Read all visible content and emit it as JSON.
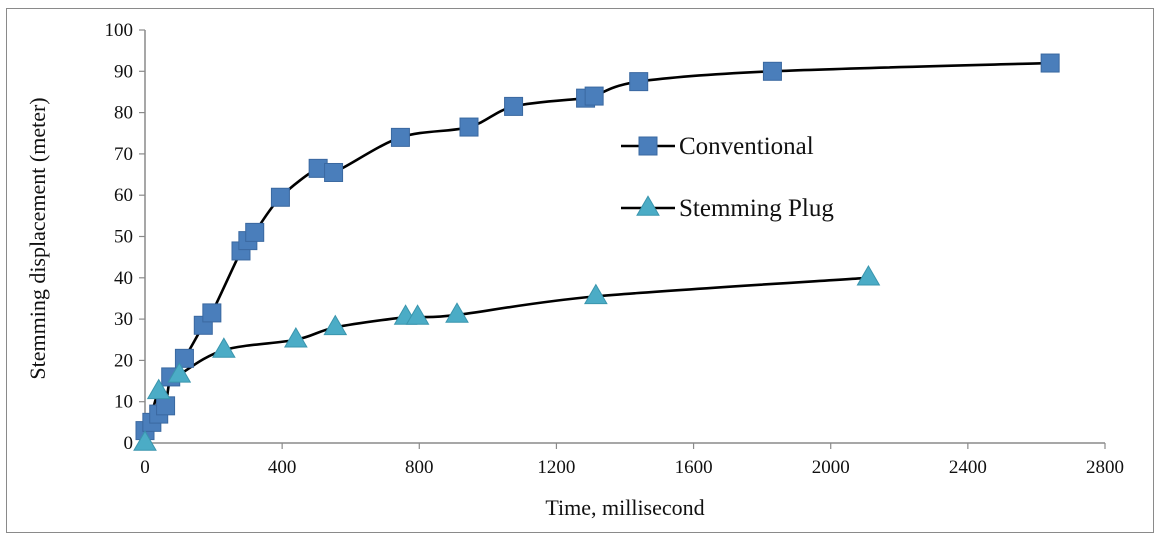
{
  "chart_data": {
    "type": "scatter",
    "title": "",
    "xlabel": "Time, millisecond",
    "ylabel": "Stemming displacement (meter)",
    "xlim": [
      0,
      2800
    ],
    "ylim": [
      0,
      100
    ],
    "x_ticks": [
      0,
      400,
      800,
      1200,
      1600,
      2000,
      2400,
      2800
    ],
    "y_ticks": [
      0,
      10,
      20,
      30,
      40,
      50,
      60,
      70,
      80,
      90,
      100
    ],
    "x_tick_labels": [
      "0",
      "400",
      "800",
      "1200",
      "1600",
      "2000",
      "2400",
      "2800"
    ],
    "y_tick_labels": [
      "0",
      "10",
      "20",
      "30",
      "40",
      "50",
      "60",
      "70",
      "80",
      "90",
      "100"
    ],
    "grid": false,
    "legend_position": "center-right",
    "series": [
      {
        "name": "Conventional",
        "marker": "square",
        "color": "#4a7ebb",
        "x": [
          0,
          20,
          40,
          60,
          75,
          115,
          170,
          195,
          280,
          300,
          320,
          395,
          505,
          550,
          745,
          945,
          1075,
          1285,
          1310,
          1440,
          1830,
          2640
        ],
        "y": [
          3,
          5,
          7,
          9,
          16,
          20.5,
          28.5,
          31.5,
          46.5,
          49,
          51,
          59.5,
          66.5,
          65.5,
          74,
          76.5,
          81.5,
          83.5,
          84,
          87.5,
          90,
          92
        ]
      },
      {
        "name": "Stemming Plug",
        "marker": "triangle",
        "color": "#4bacc6",
        "x": [
          0,
          40,
          100,
          230,
          440,
          555,
          760,
          795,
          910,
          1315,
          2110
        ],
        "y": [
          0,
          12.5,
          16.5,
          22.5,
          25,
          28,
          30.5,
          30.5,
          31,
          35.5,
          40
        ]
      }
    ]
  },
  "style": {
    "line_color": "#000000",
    "axis_color": "#8a8a8a"
  }
}
